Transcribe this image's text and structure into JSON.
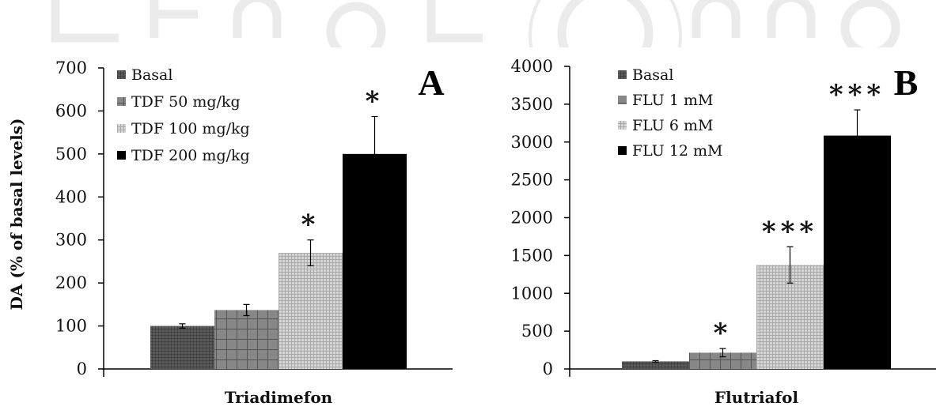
{
  "chart_data": [
    {
      "type": "bar",
      "panel_label": "A",
      "xlabel": "Triadimefon",
      "ylabel": "DA (% of basal levels)",
      "ylim": [
        0,
        700
      ],
      "yticks": [
        0,
        100,
        200,
        300,
        400,
        500,
        600,
        700
      ],
      "legend_position": "top-left",
      "grid": false,
      "series": [
        {
          "name": "Basal",
          "value": 100,
          "error": 5,
          "significance": "",
          "pattern": "fine-grid",
          "color": "#4a4a4a"
        },
        {
          "name": "TDF 50 mg/kg",
          "value": 137,
          "error": 13,
          "significance": "",
          "pattern": "coarse-grid",
          "color": "#808080"
        },
        {
          "name": "TDF 100 mg/kg",
          "value": 270,
          "error": 30,
          "significance": "*",
          "pattern": "light-grid",
          "color": "#c8c8c8"
        },
        {
          "name": "TDF 200 mg/kg",
          "value": 500,
          "error": 87,
          "significance": "*",
          "pattern": "solid",
          "color": "#000000"
        }
      ]
    },
    {
      "type": "bar",
      "panel_label": "B",
      "xlabel": "Flutriafol",
      "ylabel": "",
      "ylim": [
        0,
        4000
      ],
      "yticks": [
        0,
        500,
        1000,
        1500,
        2000,
        2500,
        3000,
        3500,
        4000
      ],
      "legend_position": "top-left",
      "grid": false,
      "series": [
        {
          "name": "Basal",
          "value": 100,
          "error": 10,
          "significance": "",
          "pattern": "fine-grid",
          "color": "#4a4a4a"
        },
        {
          "name": "FLU 1 mM",
          "value": 215,
          "error": 55,
          "significance": "*",
          "pattern": "coarse-grid",
          "color": "#808080"
        },
        {
          "name": "FLU 6 mM",
          "value": 1375,
          "error": 240,
          "significance": "***",
          "pattern": "light-grid",
          "color": "#c8c8c8"
        },
        {
          "name": "FLU 12 mM",
          "value": 3085,
          "error": 340,
          "significance": "***",
          "pattern": "solid",
          "color": "#000000"
        }
      ]
    }
  ]
}
